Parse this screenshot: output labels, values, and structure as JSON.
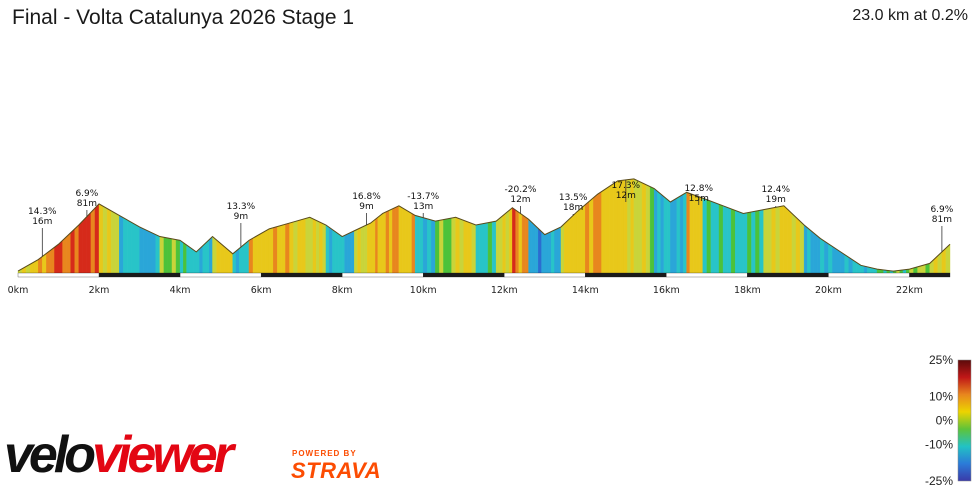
{
  "header": {
    "title": "Final - Volta Catalunya 2026 Stage 1",
    "summary": "23.0 km at 0.2%"
  },
  "branding": {
    "logo_velo": "velo",
    "logo_viewer": "viewer",
    "powered_by": "POWERED BY",
    "strava": "STRAVA"
  },
  "legend": {
    "labels": [
      "25%",
      "10%",
      "0%",
      "-10%",
      "-25%"
    ],
    "values": [
      25,
      10,
      0,
      -10,
      -25
    ],
    "colors": [
      "#5b0a0a",
      "#c01717",
      "#e8861e",
      "#ecd400",
      "#5ec33a",
      "#22c2c4",
      "#2b7bd8",
      "#3a3aa8"
    ]
  },
  "chart_data": {
    "type": "area",
    "title": "Final - Volta Catalunya 2026 Stage 1",
    "xlabel": "",
    "ylabel": "",
    "x_unit": "km",
    "xlim": [
      0,
      23
    ],
    "ylim": [
      0,
      150
    ],
    "x_ticks": [
      0,
      2,
      4,
      6,
      8,
      10,
      12,
      14,
      16,
      18,
      20,
      22
    ],
    "x_tick_labels": [
      "0km",
      "2km",
      "4km",
      "6km",
      "8km",
      "10km",
      "12km",
      "14km",
      "16km",
      "18km",
      "20km",
      "22km"
    ],
    "profile": {
      "x": [
        0,
        0.5,
        1.0,
        1.5,
        2.0,
        2.5,
        3.0,
        3.5,
        4.0,
        4.4,
        4.8,
        5.3,
        5.7,
        6.2,
        6.7,
        7.2,
        7.6,
        8.0,
        8.3,
        8.7,
        9.0,
        9.4,
        9.8,
        10.3,
        10.8,
        11.3,
        11.8,
        12.2,
        12.6,
        13.0,
        13.4,
        13.8,
        14.3,
        14.8,
        15.2,
        15.7,
        16.1,
        16.5,
        16.9,
        17.4,
        17.9,
        18.4,
        18.9,
        19.4,
        19.8,
        20.3,
        20.8,
        21.2,
        21.6,
        22.0,
        22.5,
        23.0
      ],
      "y": [
        2,
        14,
        30,
        50,
        72,
        60,
        48,
        38,
        34,
        22,
        38,
        20,
        34,
        46,
        52,
        58,
        50,
        38,
        44,
        52,
        62,
        70,
        60,
        54,
        58,
        50,
        54,
        68,
        56,
        40,
        48,
        64,
        82,
        96,
        98,
        88,
        74,
        84,
        78,
        70,
        62,
        66,
        70,
        50,
        36,
        22,
        8,
        4,
        2,
        4,
        10,
        30
      ],
      "grades": [
        4,
        9,
        10,
        12,
        3,
        -5,
        -8,
        0,
        -4,
        -6,
        5,
        -5,
        6,
        7,
        4,
        3,
        -5,
        -8,
        3,
        6,
        8,
        6,
        -6,
        0,
        4,
        -4,
        3,
        9,
        -9,
        -8,
        5,
        7,
        6,
        5,
        2,
        -6,
        -7,
        6,
        -3,
        -4,
        -3,
        3,
        4,
        -8,
        -7,
        -6,
        -5,
        -2,
        -1,
        1,
        3,
        9
      ]
    },
    "annotations": [
      {
        "km": 0.6,
        "grade": "14.3%",
        "length": "16m"
      },
      {
        "km": 1.7,
        "grade": "6.9%",
        "length": "81m"
      },
      {
        "km": 5.5,
        "grade": "13.3%",
        "length": "9m"
      },
      {
        "km": 8.6,
        "grade": "16.8%",
        "length": "9m"
      },
      {
        "km": 10.0,
        "grade": "-13.7%",
        "length": "13m"
      },
      {
        "km": 12.4,
        "grade": "-20.2%",
        "length": "12m"
      },
      {
        "km": 13.7,
        "grade": "13.5%",
        "length": "18m"
      },
      {
        "km": 15.0,
        "grade": "17.3%",
        "length": "12m"
      },
      {
        "km": 16.8,
        "grade": "12.8%",
        "length": "15m"
      },
      {
        "km": 18.7,
        "grade": "12.4%",
        "length": "19m"
      },
      {
        "km": 22.8,
        "grade": "6.9%",
        "length": "81m"
      }
    ],
    "legend_position": "right",
    "grid": false
  }
}
